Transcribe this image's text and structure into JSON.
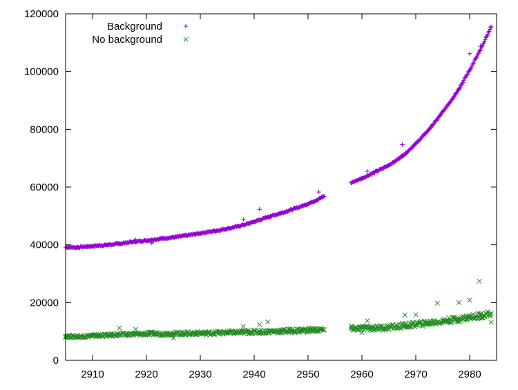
{
  "chart_data": {
    "type": "scatter",
    "xlim": [
      2905,
      2985
    ],
    "ylim": [
      0,
      120000
    ],
    "x_ticks": [
      2910,
      2920,
      2930,
      2940,
      2950,
      2960,
      2970,
      2980
    ],
    "y_ticks": [
      0,
      20000,
      40000,
      60000,
      80000,
      100000,
      120000
    ],
    "grid": false,
    "legend_position": "top-left",
    "series": [
      {
        "name": "Background",
        "marker": "plus",
        "color": "#9400d3",
        "points": [
          [
            2905,
            39200
          ],
          [
            2907,
            39100
          ],
          [
            2909,
            39400
          ],
          [
            2911,
            39700
          ],
          [
            2913,
            40000
          ],
          [
            2915,
            40400
          ],
          [
            2917,
            40900
          ],
          [
            2919,
            41300
          ],
          [
            2921,
            41700
          ],
          [
            2923,
            42200
          ],
          [
            2925,
            42600
          ],
          [
            2927,
            43100
          ],
          [
            2929,
            43700
          ],
          [
            2931,
            44300
          ],
          [
            2933,
            44900
          ],
          [
            2935,
            45600
          ],
          [
            2937,
            46400
          ],
          [
            2939,
            47400
          ],
          [
            2941,
            48600
          ],
          [
            2943,
            49900
          ],
          [
            2945,
            51000
          ],
          [
            2947,
            52200
          ],
          [
            2949,
            53500
          ],
          [
            2951,
            55000
          ],
          [
            2953,
            56800
          ],
          [
            2958,
            61500
          ],
          [
            2960,
            63000
          ],
          [
            2962,
            64800
          ],
          [
            2964,
            66600
          ],
          [
            2966,
            68700
          ],
          [
            2968,
            71500
          ],
          [
            2970,
            75000
          ],
          [
            2972,
            79000
          ],
          [
            2974,
            83500
          ],
          [
            2976,
            88500
          ],
          [
            2978,
            94000
          ],
          [
            2980,
            100500
          ],
          [
            2982,
            107500
          ],
          [
            2984,
            115500
          ],
          [
            2918,
            41800
          ],
          [
            2921,
            40600
          ],
          [
            2938,
            48800
          ],
          [
            2941,
            52300
          ],
          [
            2952,
            58300
          ],
          [
            2961,
            65500
          ],
          [
            2967.5,
            74700
          ],
          [
            2980,
            106200
          ],
          [
            2982,
            108800
          ]
        ]
      },
      {
        "name": "No background",
        "marker": "cross",
        "color": "#228b22",
        "points": [
          [
            2905,
            8300
          ],
          [
            2907,
            8200
          ],
          [
            2909,
            8400
          ],
          [
            2911,
            8600
          ],
          [
            2913,
            8700
          ],
          [
            2915,
            8900
          ],
          [
            2917,
            9000
          ],
          [
            2919,
            9100
          ],
          [
            2921,
            9200
          ],
          [
            2923,
            9200
          ],
          [
            2925,
            9300
          ],
          [
            2927,
            9300
          ],
          [
            2929,
            9400
          ],
          [
            2931,
            9400
          ],
          [
            2933,
            9500
          ],
          [
            2935,
            9600
          ],
          [
            2937,
            9700
          ],
          [
            2939,
            9800
          ],
          [
            2941,
            9900
          ],
          [
            2943,
            10000
          ],
          [
            2945,
            10100
          ],
          [
            2947,
            10200
          ],
          [
            2949,
            10400
          ],
          [
            2951,
            10500
          ],
          [
            2953,
            10600
          ],
          [
            2958,
            11000
          ],
          [
            2960,
            11100
          ],
          [
            2962,
            11200
          ],
          [
            2964,
            11300
          ],
          [
            2966,
            11600
          ],
          [
            2968,
            12000
          ],
          [
            2970,
            12400
          ],
          [
            2972,
            12900
          ],
          [
            2974,
            13300
          ],
          [
            2976,
            13800
          ],
          [
            2978,
            14300
          ],
          [
            2980,
            14900
          ],
          [
            2982,
            15500
          ],
          [
            2984,
            16200
          ],
          [
            2915,
            11200
          ],
          [
            2918,
            10700
          ],
          [
            2925,
            7700
          ],
          [
            2938,
            11800
          ],
          [
            2941,
            12400
          ],
          [
            2942.5,
            13300
          ],
          [
            2960,
            9600
          ],
          [
            2961,
            13700
          ],
          [
            2968,
            15700
          ],
          [
            2970,
            15800
          ],
          [
            2974,
            19800
          ],
          [
            2978,
            20000
          ],
          [
            2980,
            20800
          ],
          [
            2981.8,
            27400
          ],
          [
            2984,
            13200
          ]
        ]
      }
    ]
  }
}
